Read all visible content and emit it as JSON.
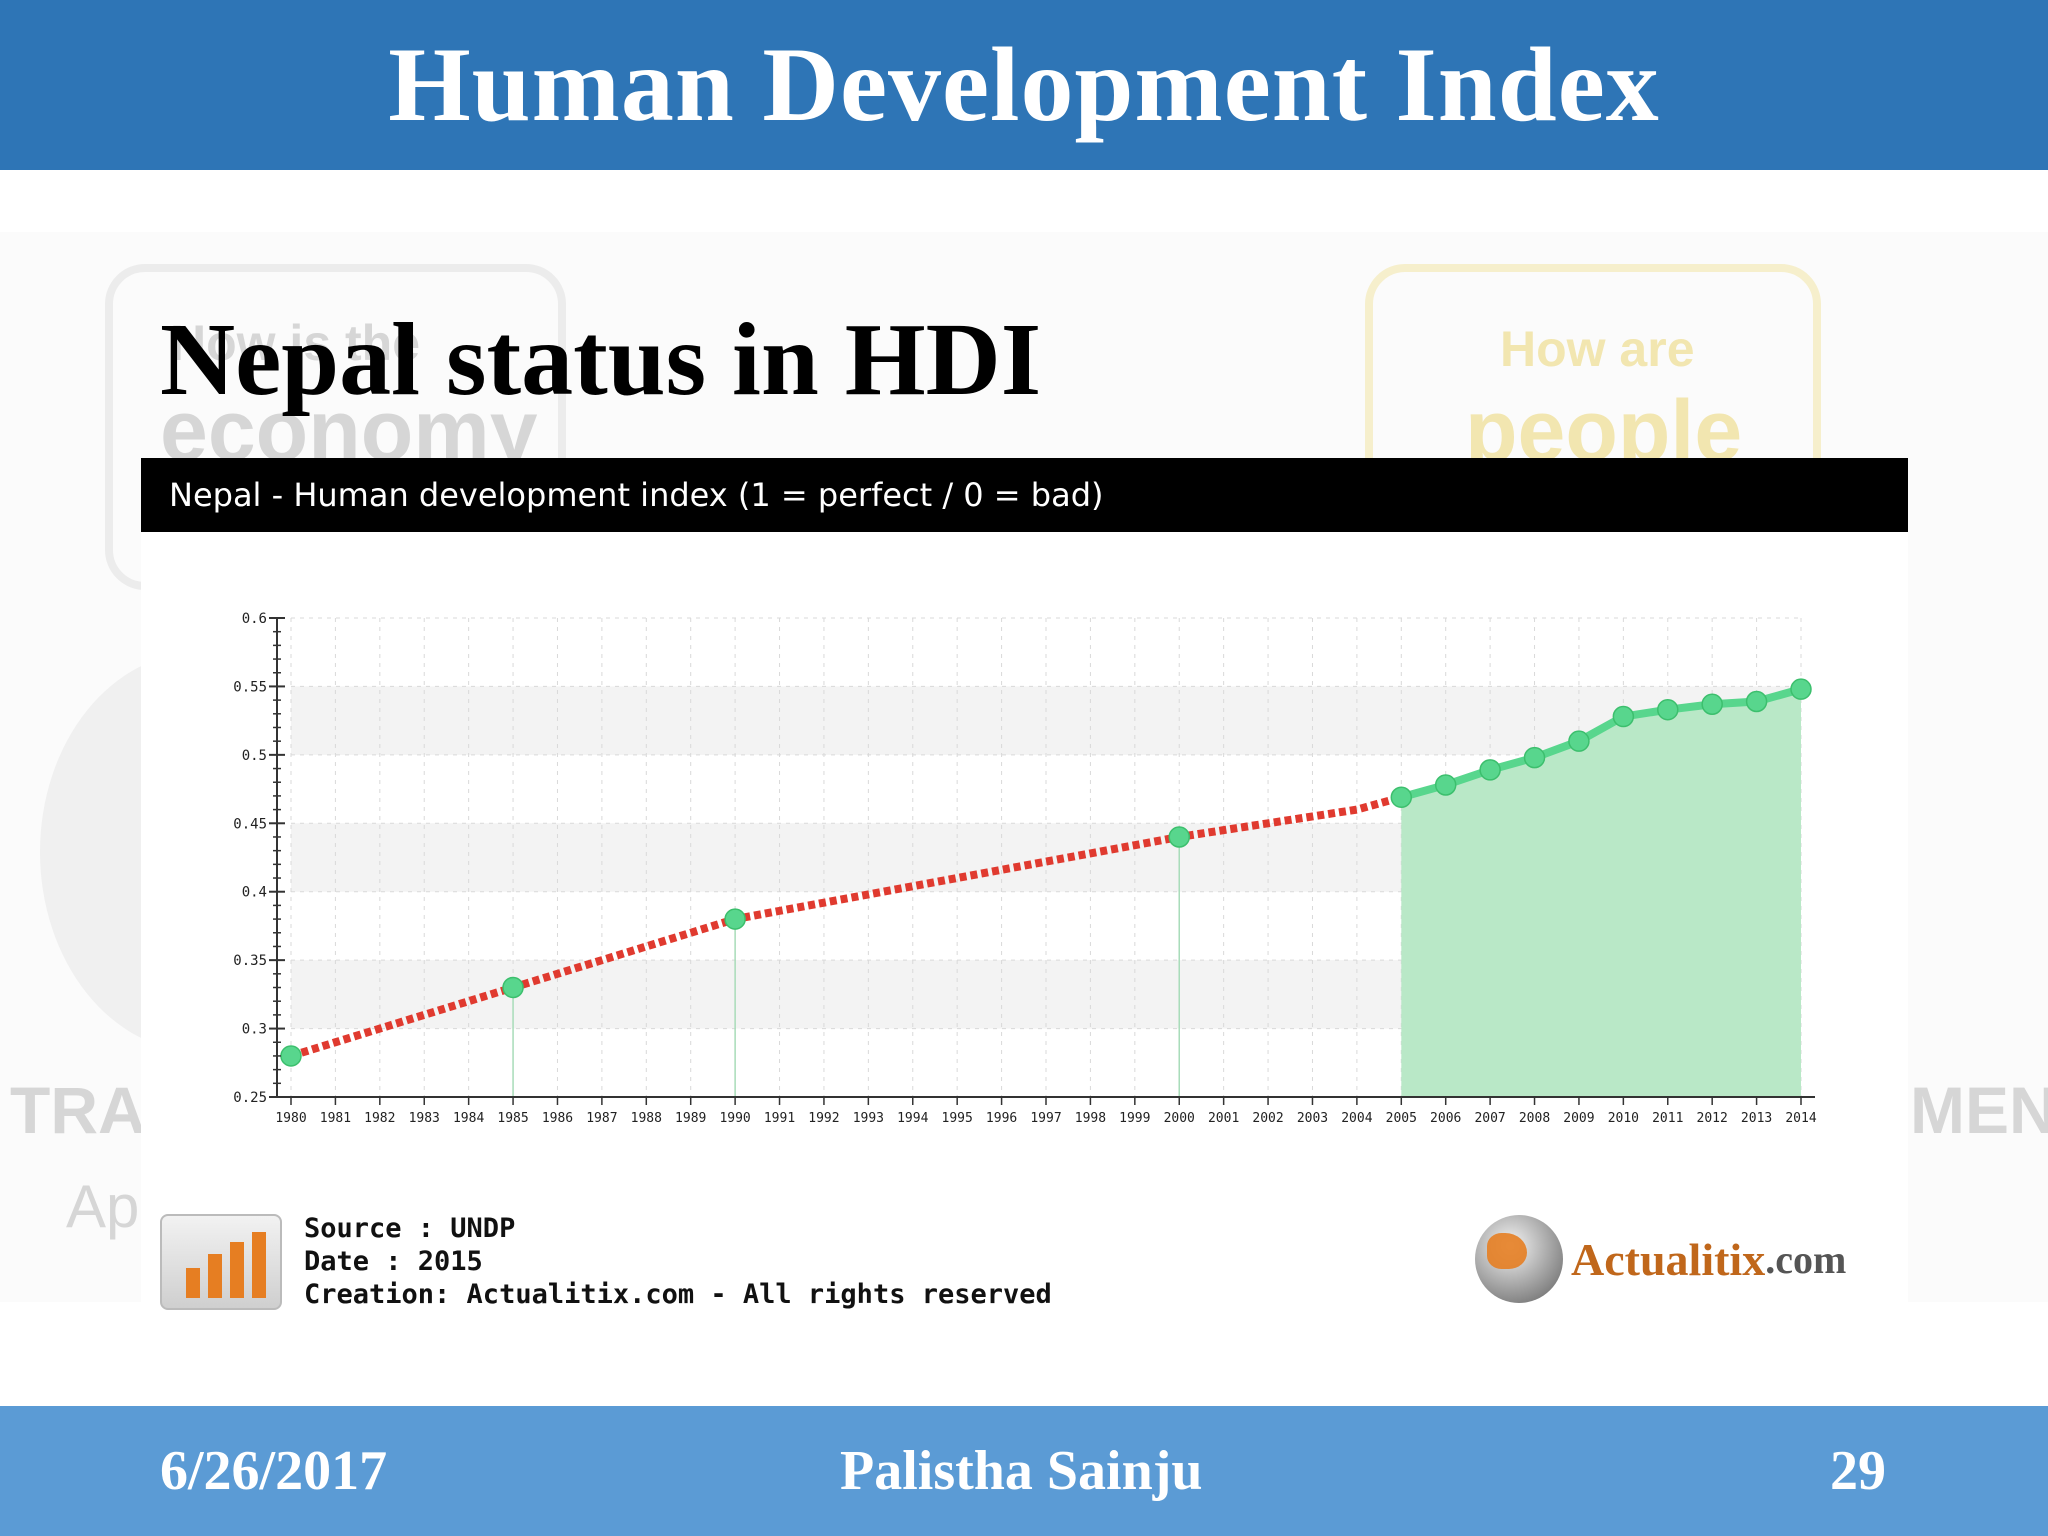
{
  "slide": {
    "header_title": "Human Development Index",
    "subtitle": "Nepal status in HDI",
    "footer": {
      "date": "6/26/2017",
      "author": "Palistha Sainju",
      "page": "29"
    }
  },
  "chart_header": "Nepal - Human development index (1 = perfect / 0 = bad)",
  "source": {
    "line1": "Source : UNDP",
    "line2": "Date : 2015",
    "line3": "Creation: Actualitix.com - All rights reserved"
  },
  "brand": {
    "name": "Actualitix",
    "tld": ".com"
  },
  "background_text": {
    "left_box_top": "How is the",
    "left_box_big": "economy",
    "right_box_top": "How are",
    "right_box_big": "people",
    "left_side": "TRAD",
    "left_side_2": "Ap",
    "right_side": "MENT"
  },
  "colors": {
    "header": "#2e75b6",
    "footer": "#5b9bd5",
    "series_red": "#e03a2f",
    "series_green": "#58d68d",
    "area_green": "#b9e8c7"
  },
  "chart_data": {
    "type": "line",
    "title": "Nepal - Human development index (1 = perfect / 0 = bad)",
    "xlabel": "",
    "ylabel": "",
    "ylim": [
      0.25,
      0.6
    ],
    "yticks": [
      "0.25",
      "0.3",
      "0.35",
      "0.4",
      "0.45",
      "0.5",
      "0.55",
      "0.6"
    ],
    "categories": [
      "1980",
      "1981",
      "1982",
      "1983",
      "1984",
      "1985",
      "1986",
      "1987",
      "1988",
      "1989",
      "1990",
      "1991",
      "1992",
      "1993",
      "1994",
      "1995",
      "1996",
      "1997",
      "1998",
      "1999",
      "2000",
      "2001",
      "2002",
      "2003",
      "2004",
      "2005",
      "2006",
      "2007",
      "2008",
      "2009",
      "2010",
      "2011",
      "2012",
      "2013",
      "2014"
    ],
    "values": [
      0.28,
      0.29,
      0.3,
      0.31,
      0.32,
      0.33,
      0.34,
      0.35,
      0.36,
      0.37,
      0.38,
      0.386,
      0.392,
      0.398,
      0.404,
      0.41,
      0.416,
      0.422,
      0.428,
      0.434,
      0.44,
      0.445,
      0.45,
      0.455,
      0.46,
      0.469,
      0.478,
      0.489,
      0.498,
      0.51,
      0.528,
      0.533,
      0.537,
      0.539,
      0.548
    ],
    "measured_points": [
      "1980",
      "1985",
      "1990",
      "2000",
      "2005",
      "2006",
      "2007",
      "2008",
      "2009",
      "2010",
      "2011",
      "2012",
      "2013",
      "2014"
    ],
    "interpolated_range": [
      "1980",
      "2005"
    ],
    "grid": true
  }
}
